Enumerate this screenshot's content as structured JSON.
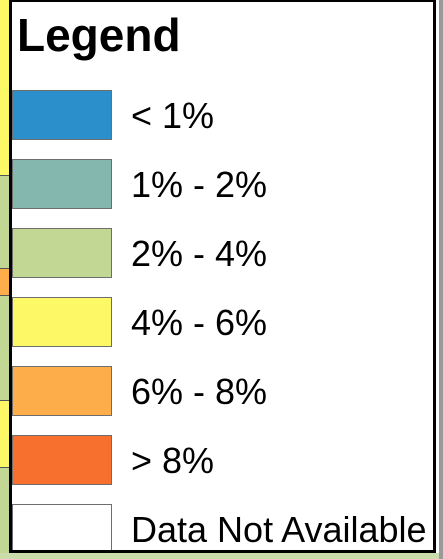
{
  "legend": {
    "title": "Legend",
    "items": [
      {
        "label": "< 1%",
        "color": "#2b8fcc"
      },
      {
        "label": "1% - 2%",
        "color": "#84b7ae"
      },
      {
        "label": "2% - 4%",
        "color": "#c2d793"
      },
      {
        "label": "4% - 6%",
        "color": "#fdf966"
      },
      {
        "label": "6% - 8%",
        "color": "#fdae4a"
      },
      {
        "label": "> 8%",
        "color": "#f7702e"
      },
      {
        "label": "Data Not Available",
        "color": "#ffffff"
      }
    ]
  },
  "map_colors": {
    "yellow": "#fdf966",
    "green": "#c2d793",
    "orange": "#fdae4a",
    "dark_orange": "#f7702e",
    "white": "#ffffff"
  }
}
